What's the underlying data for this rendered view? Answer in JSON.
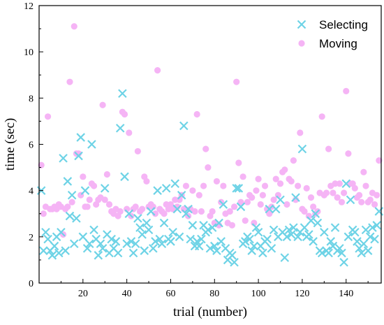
{
  "chart_data": {
    "type": "scatter",
    "title": "",
    "xlabel": "trial (number)",
    "ylabel": "time (sec)",
    "xlim": [
      0,
      156
    ],
    "ylim": [
      0,
      12
    ],
    "xticks": [
      20,
      40,
      60,
      80,
      100,
      120,
      140
    ],
    "yticks": [
      0,
      2,
      4,
      6,
      8,
      10,
      12
    ],
    "grid": false,
    "legend_position": "top-right",
    "series": [
      {
        "name": "Selecting",
        "marker": "x",
        "color": "#6ed3e6",
        "x": [
          1,
          2,
          3,
          4,
          5,
          6,
          7,
          8,
          9,
          10,
          11,
          12,
          13,
          14,
          15,
          16,
          17,
          18,
          19,
          20,
          21,
          22,
          23,
          24,
          25,
          26,
          27,
          28,
          29,
          30,
          31,
          32,
          33,
          34,
          35,
          36,
          37,
          38,
          39,
          40,
          41,
          42,
          43,
          44,
          45,
          46,
          47,
          48,
          49,
          50,
          51,
          52,
          53,
          54,
          55,
          56,
          57,
          58,
          59,
          60,
          61,
          62,
          63,
          64,
          65,
          66,
          67,
          68,
          69,
          70,
          71,
          72,
          73,
          74,
          75,
          76,
          77,
          78,
          79,
          80,
          81,
          82,
          83,
          84,
          85,
          86,
          87,
          88,
          89,
          90,
          91,
          92,
          93,
          94,
          95,
          96,
          97,
          98,
          99,
          100,
          101,
          102,
          103,
          104,
          105,
          106,
          107,
          108,
          109,
          110,
          111,
          112,
          113,
          114,
          115,
          116,
          117,
          118,
          119,
          120,
          121,
          122,
          123,
          124,
          125,
          126,
          127,
          128,
          129,
          130,
          131,
          132,
          133,
          134,
          135,
          136,
          137,
          138,
          139,
          140,
          141,
          142,
          143,
          144,
          145,
          146,
          147,
          148,
          149,
          150,
          151,
          152,
          153,
          154,
          155
        ],
        "y": [
          4.0,
          1.4,
          2.2,
          1.9,
          1.4,
          1.2,
          1.6,
          2.0,
          1.3,
          2.2,
          5.4,
          1.4,
          4.4,
          2.9,
          3.8,
          1.7,
          2.8,
          5.5,
          6.3,
          2.0,
          4.0,
          1.5,
          1.7,
          6.0,
          2.3,
          1.9,
          1.2,
          1.7,
          1.5,
          4.1,
          2.1,
          1.3,
          1.9,
          1.5,
          1.8,
          1.3,
          6.7,
          8.2,
          4.6,
          1.7,
          3.0,
          1.8,
          1.3,
          1.7,
          2.8,
          2.4,
          2.1,
          1.4,
          2.6,
          2.3,
          3.1,
          1.5,
          1.8,
          4.0,
          1.9,
          1.7,
          2.6,
          4.1,
          1.9,
          1.8,
          2.2,
          4.3,
          3.2,
          2.0,
          3.8,
          6.8,
          3.0,
          3.2,
          1.9,
          2.5,
          1.6,
          1.8,
          1.6,
          1.9,
          2.5,
          2.2,
          2.3,
          1.5,
          2.4,
          1.6,
          1.4,
          2.6,
          1.8,
          3.4,
          1.5,
          1.0,
          1.3,
          1.2,
          0.9,
          4.1,
          4.1,
          3.3,
          1.7,
          1.8,
          2.0,
          1.9,
          1.4,
          1.6,
          2.4,
          2.2,
          1.6,
          1.3,
          1.8,
          1.9,
          3.2,
          1.5,
          2.3,
          3.2,
          2.0,
          3.6,
          2.2,
          1.1,
          2.0,
          2.3,
          2.1,
          2.4,
          3.7,
          2.0,
          2.2,
          5.8,
          2.4,
          2.0,
          2.1,
          2.7,
          1.8,
          3.0,
          2.6,
          1.4,
          1.3,
          2.2,
          1.4,
          1.3,
          1.8,
          1.6,
          2.4,
          1.4,
          1.5,
          1.3,
          0.9,
          4.3,
          2.0,
          3.6,
          2.3,
          2.2,
          1.8,
          1.5,
          1.3,
          1.7,
          2.3,
          1.4,
          2.0,
          2.4,
          1.9,
          2.5,
          3.1
        ]
      },
      {
        "name": "Moving",
        "marker": "o",
        "color": "#f5b4f5",
        "x": [
          1,
          2,
          3,
          4,
          5,
          6,
          7,
          8,
          9,
          10,
          11,
          12,
          13,
          14,
          15,
          16,
          17,
          18,
          19,
          20,
          21,
          22,
          23,
          24,
          25,
          26,
          27,
          28,
          29,
          30,
          31,
          32,
          33,
          34,
          35,
          36,
          37,
          38,
          39,
          40,
          41,
          42,
          43,
          44,
          45,
          46,
          47,
          48,
          49,
          50,
          51,
          52,
          53,
          54,
          55,
          56,
          57,
          58,
          59,
          60,
          61,
          62,
          63,
          64,
          65,
          66,
          67,
          68,
          69,
          70,
          71,
          72,
          73,
          74,
          75,
          76,
          77,
          78,
          79,
          80,
          81,
          82,
          83,
          84,
          85,
          86,
          87,
          88,
          89,
          90,
          91,
          92,
          93,
          94,
          95,
          96,
          97,
          98,
          99,
          100,
          101,
          102,
          103,
          104,
          105,
          106,
          107,
          108,
          109,
          110,
          111,
          112,
          113,
          114,
          115,
          116,
          117,
          118,
          119,
          120,
          121,
          122,
          123,
          124,
          125,
          126,
          127,
          128,
          129,
          130,
          131,
          132,
          133,
          134,
          135,
          136,
          137,
          138,
          139,
          140,
          141,
          142,
          143,
          144,
          145,
          146,
          147,
          148,
          149,
          150,
          151,
          152,
          153,
          154,
          155
        ],
        "y": [
          5.1,
          3.0,
          3.3,
          7.2,
          3.2,
          3.2,
          3.3,
          3.2,
          3.4,
          3.3,
          2.1,
          3.2,
          3.3,
          8.7,
          3.5,
          11.1,
          5.6,
          5.6,
          3.8,
          4.6,
          3.3,
          3.3,
          3.6,
          4.3,
          4.2,
          3.4,
          3.6,
          3.7,
          7.7,
          3.6,
          4.7,
          3.4,
          3.1,
          3.0,
          3.2,
          2.9,
          3.1,
          7.4,
          7.3,
          3.2,
          6.5,
          2.9,
          3.2,
          3.3,
          5.7,
          3.1,
          3.2,
          4.6,
          4.4,
          3.3,
          3.4,
          3.3,
          3.0,
          9.2,
          3.2,
          3.1,
          3.0,
          3.4,
          3.2,
          3.4,
          3.2,
          3.6,
          3.3,
          3.6,
          3.8,
          3.2,
          4.2,
          2.9,
          3.2,
          4.0,
          3.1,
          7.3,
          3.8,
          3.1,
          4.2,
          5.8,
          5.0,
          2.9,
          3.1,
          2.6,
          4.4,
          2.5,
          3.5,
          4.2,
          3.0,
          2.6,
          3.1,
          2.5,
          3.3,
          8.7,
          5.2,
          3.5,
          4.6,
          2.7,
          3.5,
          3.8,
          3.7,
          2.6,
          4.0,
          4.5,
          3.4,
          3.8,
          4.2,
          3.2,
          3.0,
          3.3,
          3.6,
          4.5,
          3.8,
          4.3,
          4.8,
          4.9,
          3.4,
          4.5,
          4.4,
          5.3,
          3.6,
          4.2,
          6.5,
          3.2,
          3.1,
          4.1,
          2.9,
          3.7,
          3.3,
          3.0,
          3.1,
          3.9,
          7.2,
          3.8,
          3.9,
          5.8,
          4.2,
          3.9,
          4.3,
          3.7,
          4.3,
          3.5,
          3.9,
          8.3,
          5.6,
          4.3,
          4.3,
          4.1,
          3.7,
          3.8,
          3.5,
          4.8,
          4.2,
          3.5,
          3.6,
          3.9,
          3.4,
          3.8,
          5.3
        ]
      }
    ]
  }
}
